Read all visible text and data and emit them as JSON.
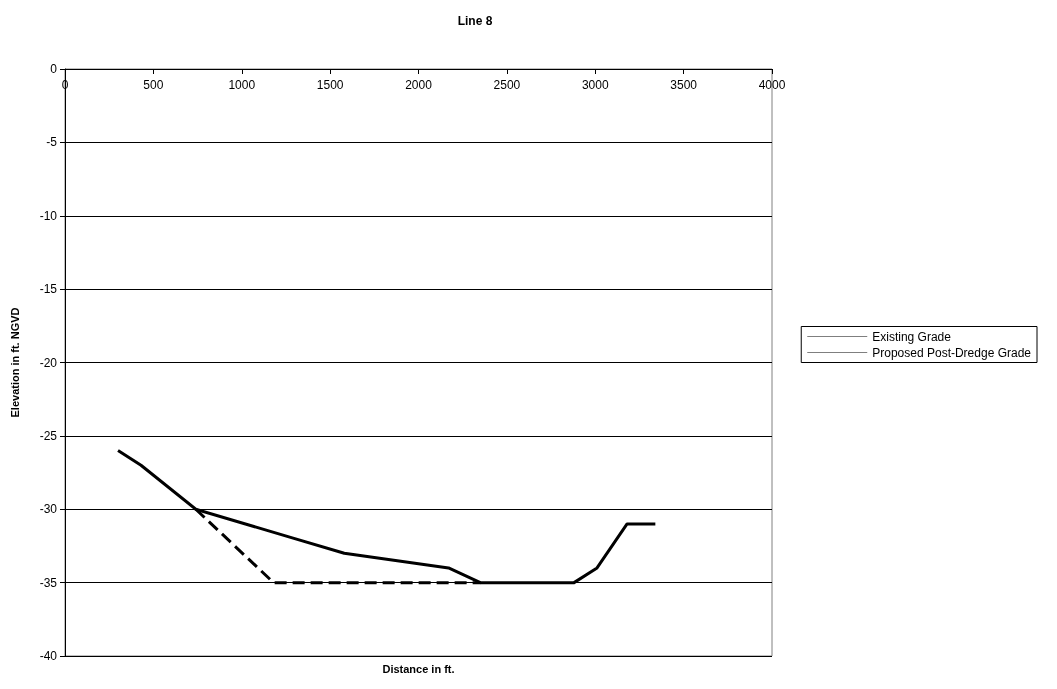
{
  "chart_data": {
    "type": "line",
    "title": "Line 8",
    "xlabel": "Distance in ft.",
    "ylabel": "Elevation in ft. NGVD",
    "xlim": [
      0,
      4000
    ],
    "xticks": [
      0,
      500,
      1000,
      1500,
      2000,
      2500,
      3000,
      3500,
      4000
    ],
    "ylim": [
      -40,
      0
    ],
    "yticks": [
      -40,
      -35,
      -30,
      -25,
      -20,
      -15,
      -10,
      -5,
      0
    ],
    "grid": "y",
    "legend": "right",
    "marker": "none",
    "series": [
      {
        "name": "Existing Grade",
        "color": "#000000",
        "line_style": "solid",
        "x": [
          300,
          430,
          740,
          1300,
          1580,
          2170,
          2350,
          2880,
          3010,
          3180,
          3340
        ],
        "values": [
          -26,
          -27,
          -30,
          -32,
          -33,
          -34,
          -35,
          -35,
          -34,
          -31,
          -31
        ]
      },
      {
        "name": "Proposed Post-Dredge Grade",
        "color": "#000000",
        "line_style": "dashed",
        "x": [
          740,
          1180,
          2350
        ],
        "values": [
          -30,
          -35,
          -35
        ]
      }
    ]
  }
}
